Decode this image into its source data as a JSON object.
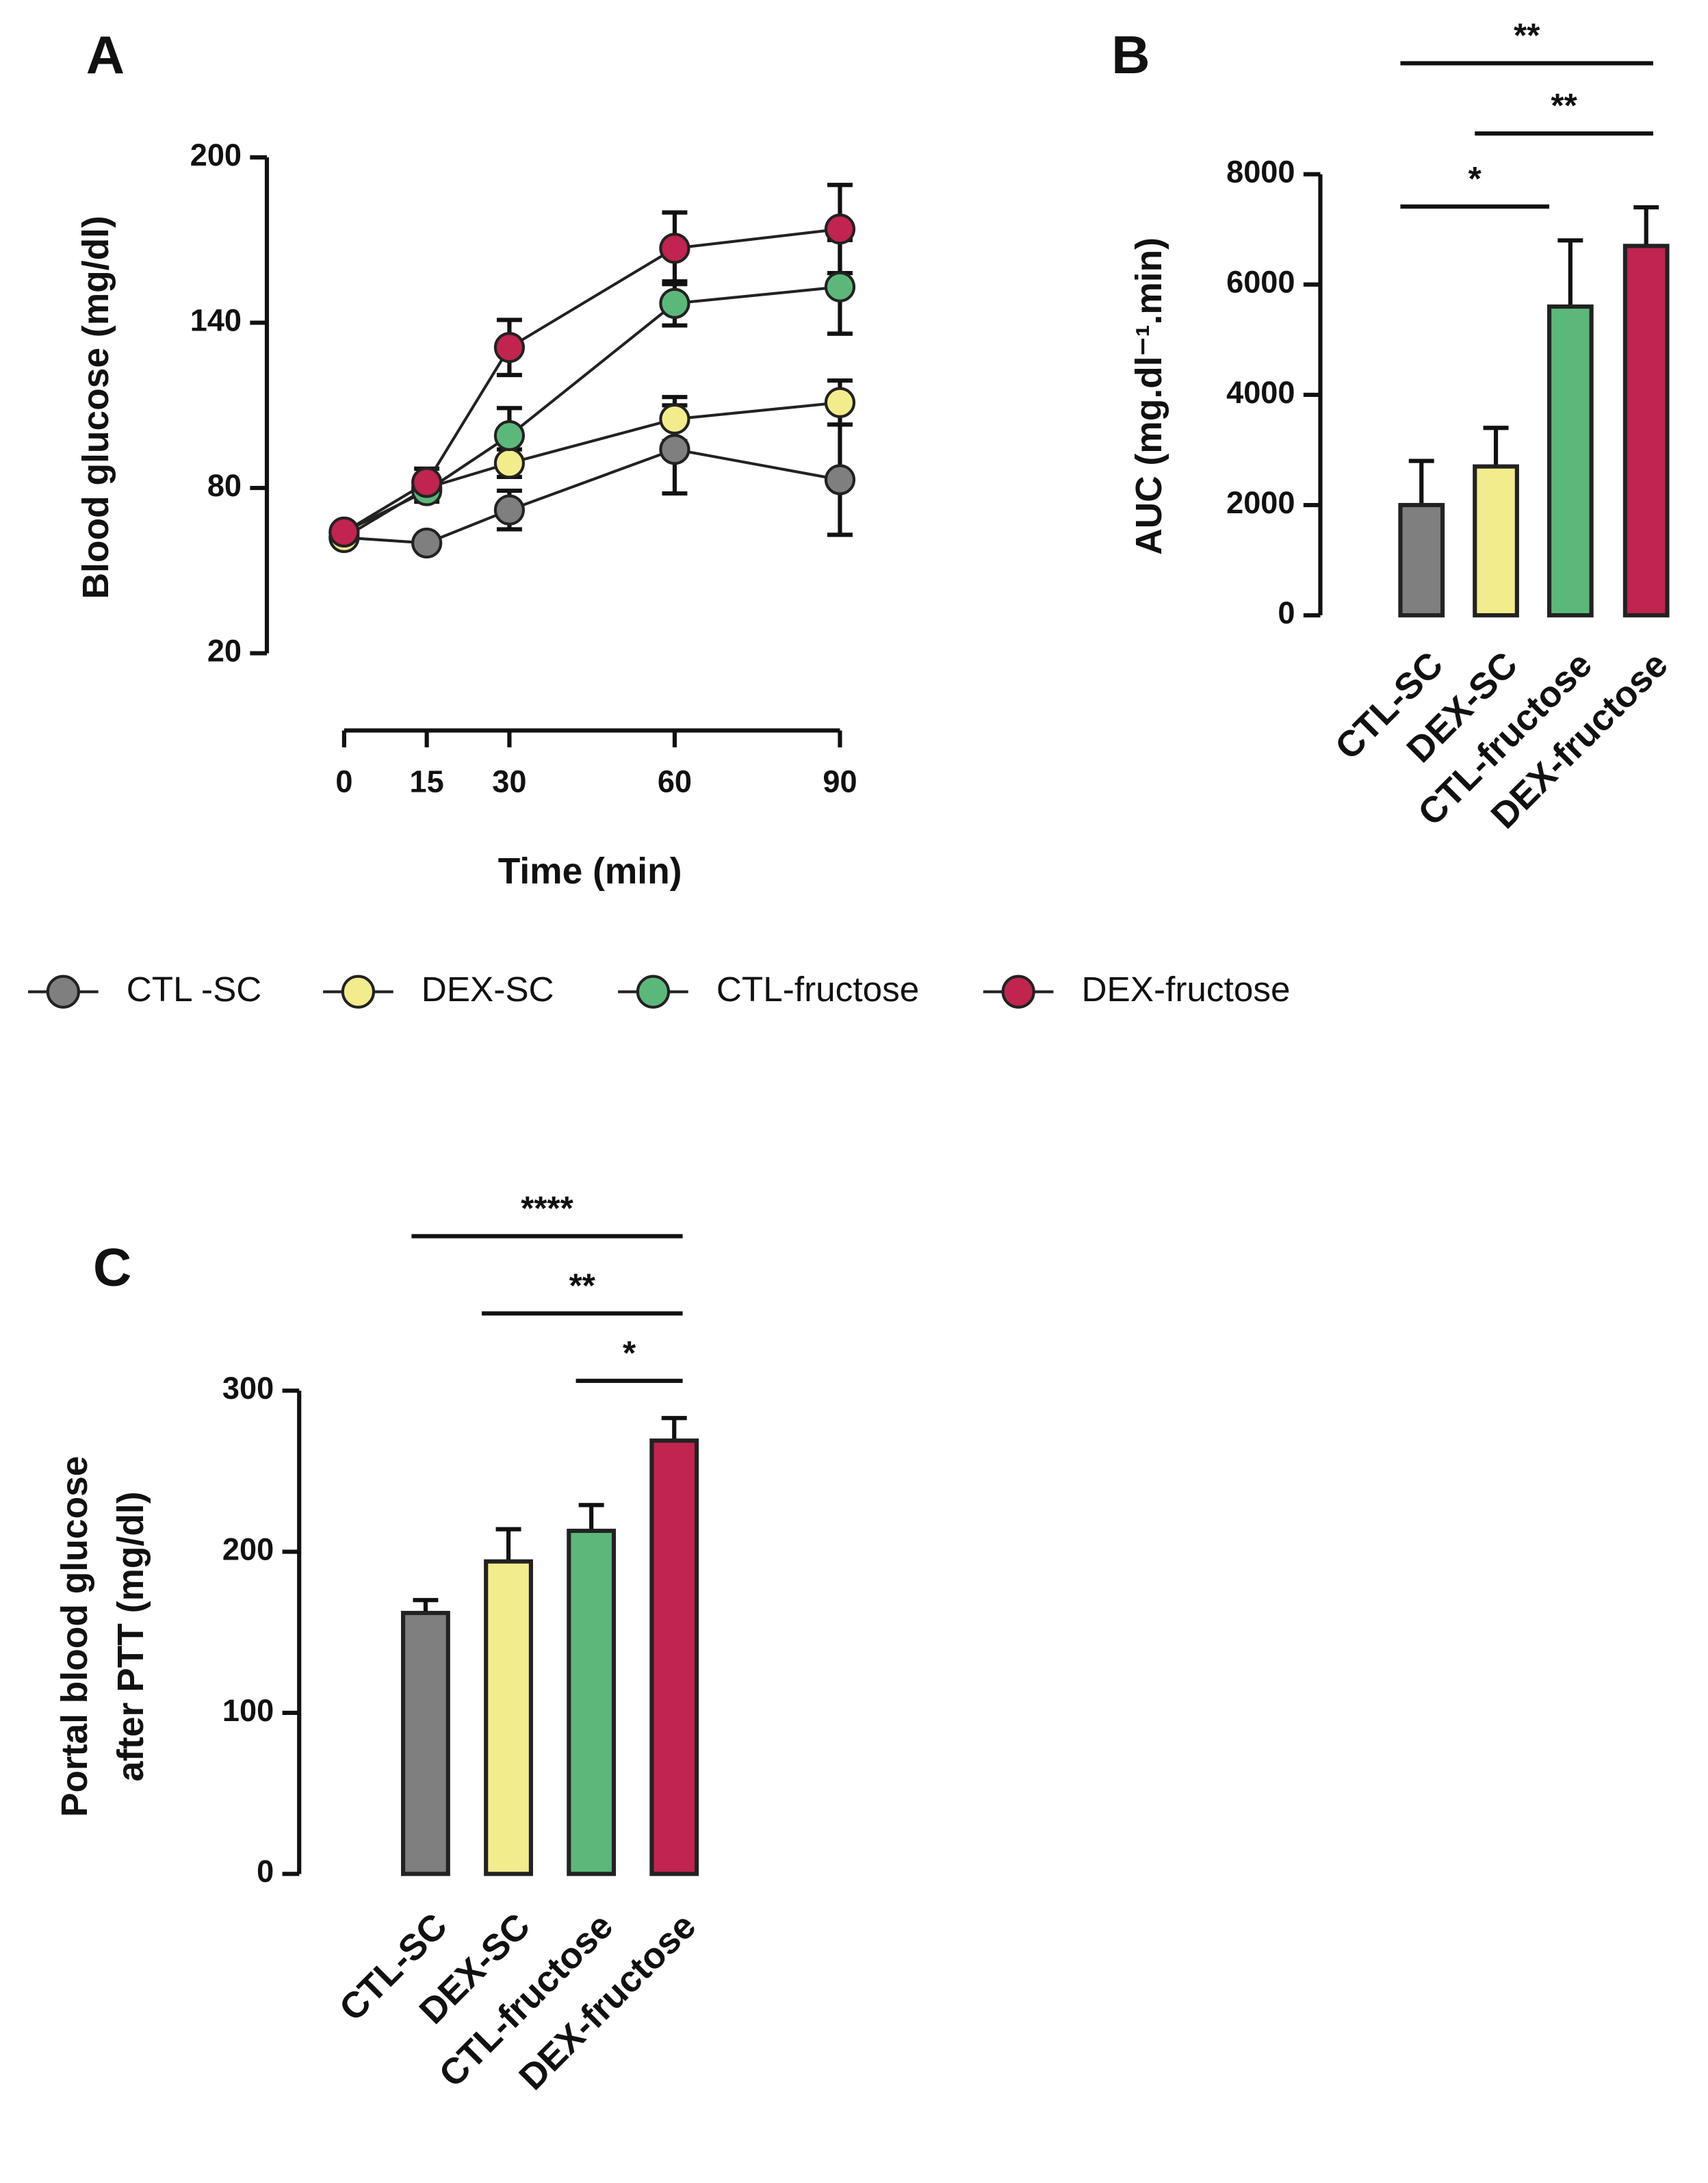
{
  "chart_data": [
    {
      "type": "line",
      "panel": "A",
      "xlabel": "Time (min)",
      "ylabel": "Blood glucose (mg/dl)",
      "x": [
        0,
        15,
        30,
        60,
        90
      ],
      "xlim": [
        0,
        90
      ],
      "xticks": [
        0,
        15,
        30,
        60,
        90
      ],
      "ylim": [
        20,
        200
      ],
      "yticks": [
        20,
        80,
        140,
        200
      ],
      "legend": "bottom",
      "series": [
        {
          "name": "CTL -SC",
          "color": "#7f7f7f",
          "values": [
            62,
            60,
            72,
            94,
            83
          ],
          "errors": [
            2,
            2,
            7,
            16,
            20
          ]
        },
        {
          "name": "DEX-SC",
          "color": "#f3ec8c",
          "values": [
            62,
            80,
            89,
            105,
            111
          ],
          "errors": [
            2,
            3,
            5,
            8,
            8
          ]
        },
        {
          "name": "CTL-fructose",
          "color": "#5cb87a",
          "values": [
            64,
            79,
            99,
            147,
            153
          ],
          "errors": [
            2,
            4,
            10,
            8,
            17
          ]
        },
        {
          "name": "DEX-fructose",
          "color": "#c0244f",
          "values": [
            64,
            82,
            131,
            167,
            174
          ],
          "errors": [
            2,
            5,
            10,
            13,
            16
          ]
        }
      ]
    },
    {
      "type": "bar",
      "panel": "B",
      "ylabel": "AUC (mg.dl⁻¹.min)",
      "categories": [
        "CTL-SC",
        "DEX-SC",
        "CTL-fructose",
        "DEX-fructose"
      ],
      "values": [
        2000,
        2700,
        5600,
        6700
      ],
      "errors": [
        800,
        700,
        1200,
        700
      ],
      "colors": [
        "#7f7f7f",
        "#f3ec8c",
        "#5cb87a",
        "#c0244f"
      ],
      "ylim": [
        0,
        8000
      ],
      "yticks": [
        0,
        2000,
        4000,
        6000,
        8000
      ],
      "annotations": [
        "**",
        "**",
        "*"
      ]
    },
    {
      "type": "bar",
      "panel": "C",
      "ylabel": [
        "Portal blood glucose",
        "after PTT (mg/dl)"
      ],
      "categories": [
        "CTL-SC",
        "DEX-SC",
        "CTL-fructose",
        "DEX-fructose"
      ],
      "values": [
        162,
        194,
        213,
        269
      ],
      "errors": [
        8,
        20,
        16,
        14
      ],
      "colors": [
        "#7f7f7f",
        "#f3ec8c",
        "#5cb87a",
        "#c0244f"
      ],
      "ylim": [
        0,
        300
      ],
      "yticks": [
        0,
        100,
        200,
        300
      ],
      "annotations": [
        "****",
        "**",
        "*"
      ]
    }
  ]
}
